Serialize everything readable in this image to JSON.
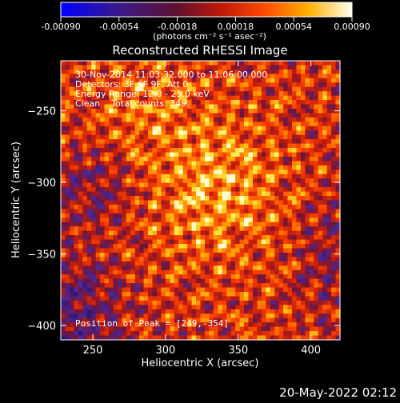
{
  "chart_data": {
    "type": "heatmap",
    "title": "Reconstructed RHESSI Image",
    "xlabel": "Heliocentric X (arcsec)",
    "ylabel": "Heliocentric Y (arcsec)",
    "xlim": [
      228,
      420
    ],
    "ylim": [
      -410,
      -215
    ],
    "x_ticks": [
      250,
      300,
      350,
      400
    ],
    "y_ticks": [
      -250,
      -300,
      -350,
      -400
    ],
    "colorbar": {
      "min": -0.0009,
      "max": 0.0009,
      "tick_values": [
        -0.0009,
        -0.00054,
        -0.00018,
        0.00018,
        0.00054,
        0.0009
      ],
      "tick_labels": [
        "-0.00090",
        "-0.00054",
        "-0.00018",
        "0.00018",
        "0.00054",
        "0.00090"
      ],
      "unit_label": "(photons cm⁻² s⁻¹ asec⁻²)",
      "colors": [
        "#0000ff",
        "#5a2a9a",
        "#b01810",
        "#ff3800",
        "#ffa000",
        "#ffffc8"
      ]
    },
    "peak_position": [
      249,
      -354
    ]
  },
  "info": {
    "line1": "30-Nov-2014 11:03:32.000 to 11:06:00.000",
    "line2": "Detectors: 3F 6F 9F, Att 0",
    "line3": "Energy Range: 12.0 - 25.0 keV",
    "line4": "Clean    Total counts: 349."
  },
  "peak_text": "Position of Peak = [249,-354]",
  "footer_date": "20-May-2022 02:12"
}
